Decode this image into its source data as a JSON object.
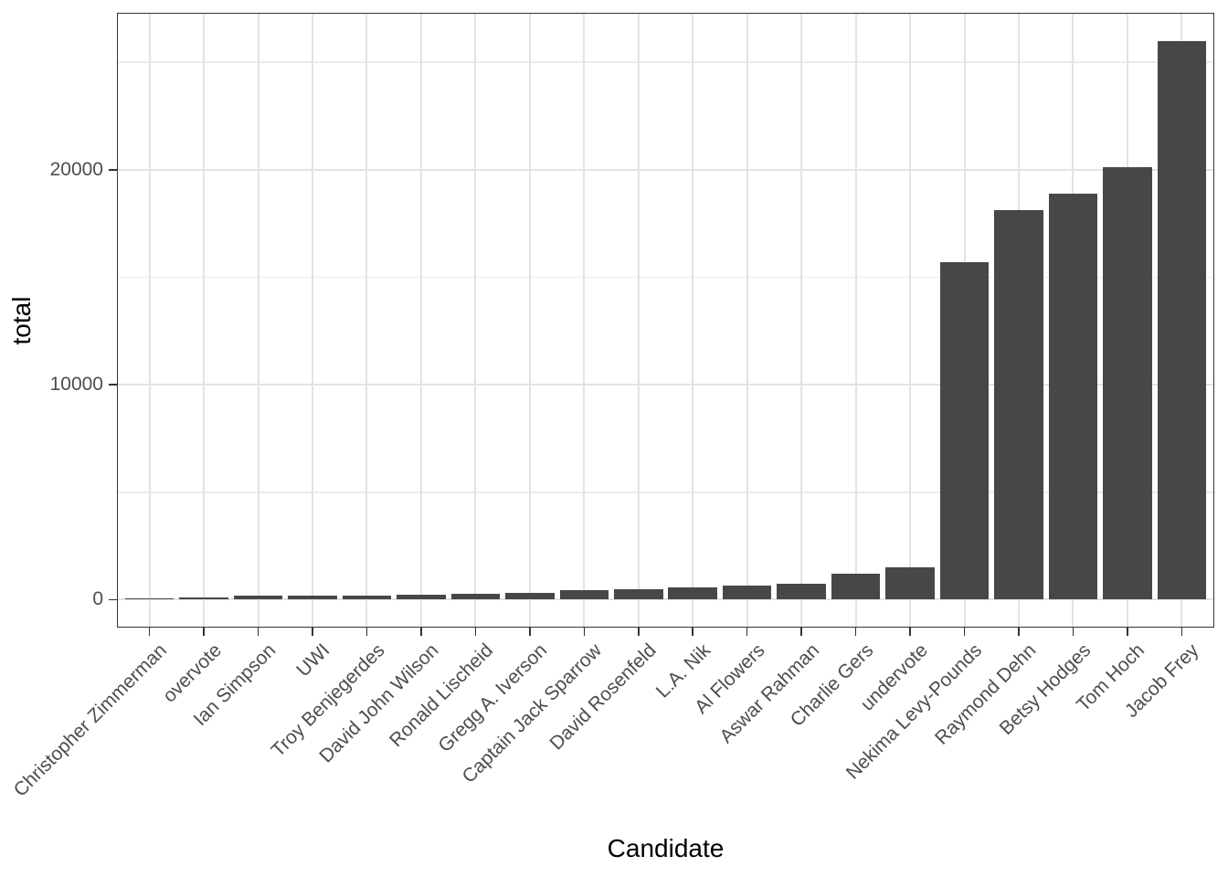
{
  "chart_data": {
    "type": "bar",
    "title": "",
    "xlabel": "Candidate",
    "ylabel": "total",
    "categories": [
      "Christopher Zimmerman",
      "overvote",
      "Ian Simpson",
      "UWI",
      "Troy Benjegerdes",
      "David John Wilson",
      "Ronald Lischeid",
      "Gregg A. Iverson",
      "Captain Jack Sparrow",
      "David Rosenfeld",
      "L.A. Nik",
      "Al Flowers",
      "Aswar Rahman",
      "Charlie Gers",
      "undervote",
      "Nekima Levy-Pounds",
      "Raymond Dehn",
      "Betsy Hodges",
      "Tom Hoch",
      "Jacob Frey"
    ],
    "values": [
      40,
      120,
      170,
      180,
      200,
      240,
      290,
      320,
      440,
      470,
      580,
      650,
      720,
      1190,
      1500,
      15700,
      18100,
      18900,
      20100,
      26000
    ],
    "ylim": [
      -1300,
      27300
    ],
    "y_major_ticks": [
      0,
      10000,
      20000
    ],
    "y_major_tick_labels": [
      "0",
      "10000",
      "20000"
    ],
    "y_minor_ticks": [
      5000,
      15000,
      25000
    ],
    "grid": "on",
    "legend": "none",
    "bar_color": "#474747",
    "major_grid_color": "#e3e3e3",
    "minor_grid_color": "#ebebeb",
    "panel_border_color": "#333333",
    "tick_color": "#333333",
    "axis_text_color": "#4d4d4d",
    "axis_title_color": "#000000",
    "background_color": "#ffffff"
  }
}
